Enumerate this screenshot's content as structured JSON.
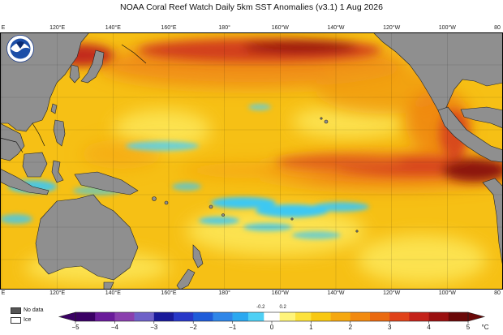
{
  "title": "NOAA Coral Reef Watch Daily 5km SST Anomalies  (v3.1)   1 Aug 2026",
  "logo_icon": "noaa-logo",
  "longitude_labels": [
    {
      "text": "E",
      "lon": 100
    },
    {
      "text": "120°E",
      "lon": 120
    },
    {
      "text": "140°E",
      "lon": 140
    },
    {
      "text": "160°E",
      "lon": 160
    },
    {
      "text": "180°",
      "lon": 180
    },
    {
      "text": "160°W",
      "lon": 200
    },
    {
      "text": "140°W",
      "lon": 220
    },
    {
      "text": "120°W",
      "lon": 240
    },
    {
      "text": "100°W",
      "lon": 260
    },
    {
      "text": "80",
      "lon": 280
    }
  ],
  "legend": {
    "no_data": {
      "label": "No data",
      "color": "#555555"
    },
    "ice": {
      "label": "Ice",
      "color": "#ffffff"
    }
  },
  "colorbar": {
    "unit": "°C",
    "min": -5,
    "max": 5,
    "ticks": [
      "−5",
      "−4",
      "−3",
      "−2",
      "−1",
      "0",
      "1",
      "2",
      "3",
      "4",
      "5"
    ],
    "tick_values": [
      -5,
      -4,
      -3,
      -2,
      -1,
      0,
      1,
      2,
      3,
      4,
      5
    ],
    "small_ticks": [
      "-0.2",
      "0.2"
    ],
    "small_tick_values": [
      -0.2,
      0.2
    ],
    "segments": [
      {
        "from": -5,
        "to": -4.5,
        "color": "#3a0064"
      },
      {
        "from": -4.5,
        "to": -4,
        "color": "#6a1b9a"
      },
      {
        "from": -4,
        "to": -3.5,
        "color": "#8a3fae"
      },
      {
        "from": -3.5,
        "to": -3,
        "color": "#6e61c8"
      },
      {
        "from": -3,
        "to": -2.5,
        "color": "#1a1a9a"
      },
      {
        "from": -2.5,
        "to": -2,
        "color": "#2838c8"
      },
      {
        "from": -2,
        "to": -1.5,
        "color": "#1f5cd9"
      },
      {
        "from": -1.5,
        "to": -1,
        "color": "#2f86e8"
      },
      {
        "from": -1,
        "to": -0.6,
        "color": "#2ba8f0"
      },
      {
        "from": -0.6,
        "to": -0.2,
        "color": "#4fd0f5"
      },
      {
        "from": -0.2,
        "to": 0.2,
        "color": "#ffffff"
      },
      {
        "from": 0.2,
        "to": 0.6,
        "color": "#fff47a"
      },
      {
        "from": 0.6,
        "to": 1,
        "color": "#fde23c"
      },
      {
        "from": 1,
        "to": 1.5,
        "color": "#f8c812"
      },
      {
        "from": 1.5,
        "to": 2,
        "color": "#f5a810"
      },
      {
        "from": 2,
        "to": 2.5,
        "color": "#f28a10"
      },
      {
        "from": 2.5,
        "to": 3,
        "color": "#ea6a10"
      },
      {
        "from": 3,
        "to": 3.5,
        "color": "#e0421a"
      },
      {
        "from": 3.5,
        "to": 4,
        "color": "#c4221a"
      },
      {
        "from": 4,
        "to": 4.5,
        "color": "#9a1010"
      },
      {
        "from": 4.5,
        "to": 5,
        "color": "#6a0808"
      }
    ]
  },
  "colors": {
    "land": "#8f8f8f",
    "base_ocean": "#f6c015",
    "cool_anomaly": "#3ec8f2",
    "warm_anomaly": "#e8601a",
    "hot_anomaly": "#8c1810"
  }
}
